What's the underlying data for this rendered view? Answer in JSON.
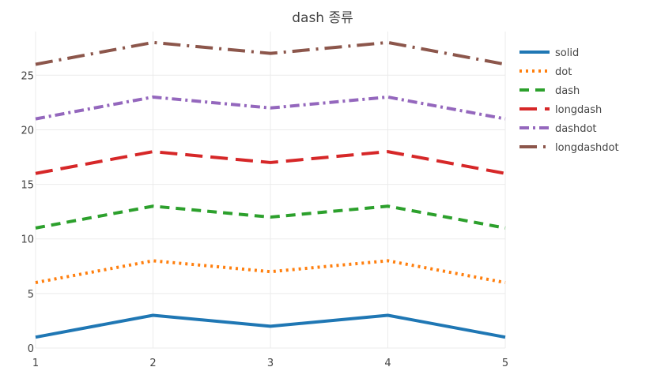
{
  "chart_data": {
    "type": "line",
    "title": "dash 종류",
    "xlabel": "",
    "ylabel": "",
    "x": [
      1,
      2,
      3,
      4,
      5
    ],
    "xlim": [
      1,
      5
    ],
    "ylim": [
      0,
      29
    ],
    "xticks": [
      1,
      2,
      3,
      4,
      5
    ],
    "yticks": [
      0,
      5,
      10,
      15,
      20,
      25
    ],
    "grid": true,
    "legend_position": "right",
    "series": [
      {
        "name": "solid",
        "values": [
          1,
          3,
          2,
          3,
          1
        ],
        "color": "#1f77b4",
        "dash": "solid"
      },
      {
        "name": "dot",
        "values": [
          6,
          8,
          7,
          8,
          6
        ],
        "color": "#ff7f0e",
        "dash": "dot"
      },
      {
        "name": "dash",
        "values": [
          11,
          13,
          12,
          13,
          11
        ],
        "color": "#2ca02c",
        "dash": "dash"
      },
      {
        "name": "longdash",
        "values": [
          16,
          18,
          17,
          18,
          16
        ],
        "color": "#d62728",
        "dash": "longdash"
      },
      {
        "name": "dashdot",
        "values": [
          21,
          23,
          22,
          23,
          21
        ],
        "color": "#9467bd",
        "dash": "dashdot"
      },
      {
        "name": "longdashdot",
        "values": [
          26,
          28,
          27,
          28,
          26
        ],
        "color": "#8c564b",
        "dash": "longdashdot"
      }
    ]
  }
}
